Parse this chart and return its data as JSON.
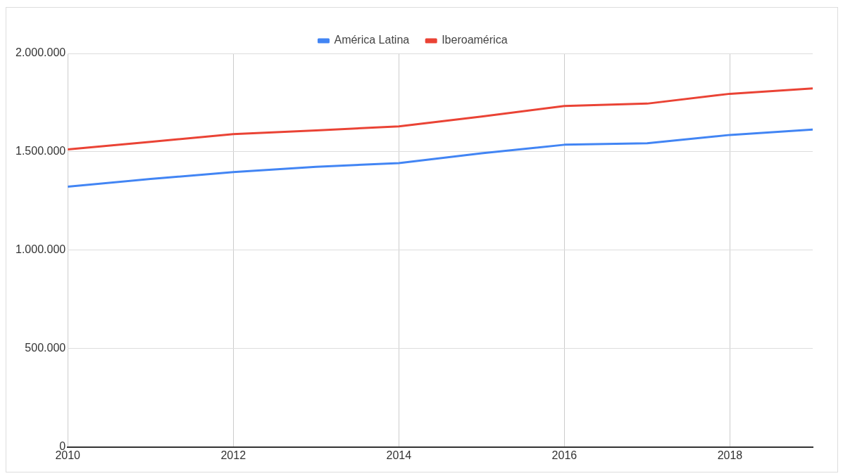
{
  "chart_data": {
    "type": "line",
    "x": [
      2010,
      2011,
      2012,
      2013,
      2014,
      2015,
      2016,
      2017,
      2018,
      2019
    ],
    "series": [
      {
        "name": "América Latina",
        "color": "#4285f4",
        "values": [
          1323000,
          1362000,
          1397000,
          1424000,
          1443000,
          1493000,
          1536000,
          1544000,
          1586000,
          1613000
        ]
      },
      {
        "name": "Iberoamérica",
        "color": "#ea4335",
        "values": [
          1512000,
          1551000,
          1590000,
          1609000,
          1629000,
          1679000,
          1733000,
          1745000,
          1795000,
          1822000
        ]
      }
    ],
    "xlim": [
      2010,
      2019
    ],
    "xticks": [
      2010,
      2012,
      2014,
      2016,
      2018
    ],
    "ylim": [
      0,
      2000000
    ],
    "yticks": [
      {
        "value": 0,
        "label": "0"
      },
      {
        "value": 500000,
        "label": "500.000"
      },
      {
        "value": 1000000,
        "label": "1.000.000"
      },
      {
        "value": 1500000,
        "label": "1.500.000"
      },
      {
        "value": 2000000,
        "label": "2.000.000"
      }
    ],
    "grid": true,
    "legend": "top",
    "marker": "none",
    "line_style": "solid"
  }
}
